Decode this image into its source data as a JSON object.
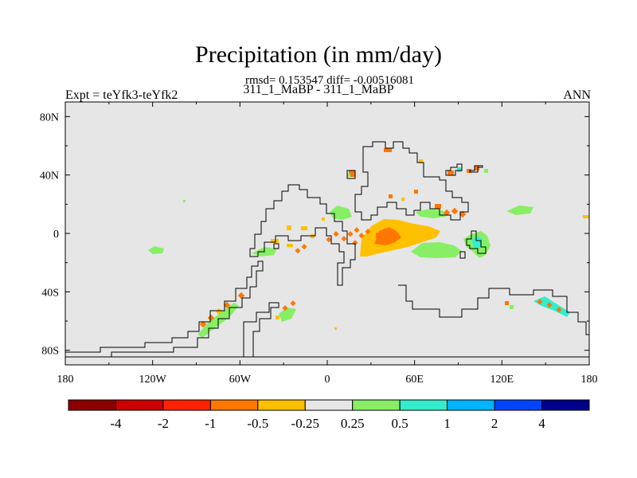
{
  "title": "Precipitation (in mm/day)",
  "stats": "rmsd= 0.153547 diff= -0.00516081",
  "case": "311_1_MaBP - 311_1_MaBP",
  "experiment": "Expt = teYfk3-teYfk2",
  "season": "ANN",
  "map": {
    "background_color": "#e6e6e6",
    "x_ticks": [
      {
        "lon": -180,
        "label": "180"
      },
      {
        "lon": -120,
        "label": "120W"
      },
      {
        "lon": -60,
        "label": "60W"
      },
      {
        "lon": 0,
        "label": "0"
      },
      {
        "lon": 60,
        "label": "60E"
      },
      {
        "lon": 120,
        "label": "120E"
      },
      {
        "lon": 180,
        "label": "180"
      }
    ],
    "y_ticks": [
      {
        "lat": 80,
        "label": "80N"
      },
      {
        "lat": 40,
        "label": "40N"
      },
      {
        "lat": 0,
        "label": "0"
      },
      {
        "lat": -40,
        "label": "40S"
      },
      {
        "lat": -80,
        "label": "80S"
      }
    ]
  },
  "colorbar": {
    "colors": [
      "#8b0000",
      "#cc0000",
      "#ff2200",
      "#ff7700",
      "#ffc000",
      "#e6e6e6",
      "#88ee66",
      "#33eecc",
      "#00b4ff",
      "#0044ff",
      "#00008b"
    ],
    "labels": [
      "-4",
      "-2",
      "-1",
      "-0.5",
      "-0.25",
      "0.25",
      "0.5",
      "1",
      "2",
      "4"
    ]
  }
}
